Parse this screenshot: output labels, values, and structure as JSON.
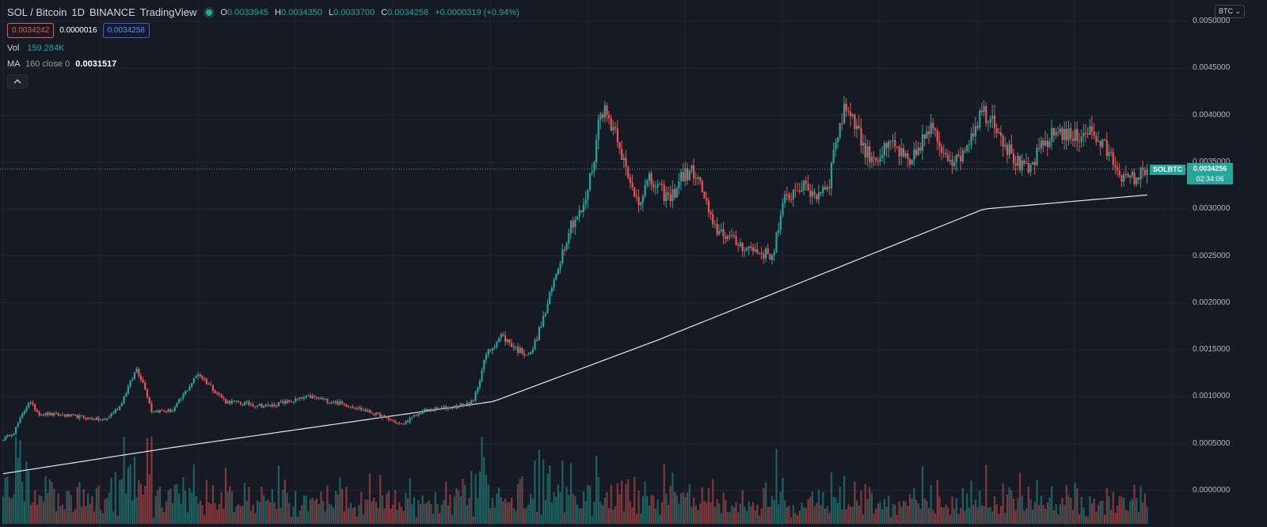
{
  "header": {
    "pair": "SOL / Bitcoin",
    "interval": "1D",
    "exchange": "BINANCE",
    "source": "TradingView",
    "ohlc": {
      "o_label": "O",
      "o": "0.0033945",
      "h_label": "H",
      "h": "0.0034350",
      "l_label": "L",
      "l": "0.0033700",
      "c_label": "C",
      "c": "0.0034256",
      "change": "+0.0000319 (+0.94%)"
    }
  },
  "bidask": {
    "bid": "0.0034242",
    "spread": "0.0000016",
    "ask": "0.0034258"
  },
  "volume": {
    "label": "Vol",
    "value": "159.284K"
  },
  "ma": {
    "label": "MA",
    "params": "160 close 0",
    "value": "0.0031517"
  },
  "currency_button": "BTC",
  "price_axis_labels": [
    "0.0050000",
    "0.0045000",
    "0.0040000",
    "0.0035000",
    "0.0030000",
    "0.0025000",
    "0.0020000",
    "0.0015000",
    "0.0010000",
    "0.0005000",
    "0.0000000"
  ],
  "last_price": {
    "symbol": "SOLBTC",
    "price": "0.0034256",
    "countdown": "02:34:06"
  },
  "colors": {
    "up": "#26a69a",
    "down": "#ef5350",
    "background": "#161a25",
    "grid": "#232632",
    "ma_line": "#e6e6e6"
  },
  "chart_data": {
    "type": "candlestick",
    "ylim": [
      0,
      0.005
    ],
    "anchors": [
      [
        0,
        0.00055
      ],
      [
        5,
        0.00062
      ],
      [
        12,
        0.00095
      ],
      [
        17,
        0.00082
      ],
      [
        30,
        0.0008
      ],
      [
        48,
        0.00075
      ],
      [
        55,
        0.0009
      ],
      [
        63,
        0.0013
      ],
      [
        67,
        0.0011
      ],
      [
        70,
        0.00085
      ],
      [
        80,
        0.00085
      ],
      [
        92,
        0.00125
      ],
      [
        105,
        0.00095
      ],
      [
        125,
        0.0009
      ],
      [
        145,
        0.001
      ],
      [
        165,
        0.0009
      ],
      [
        180,
        0.00078
      ],
      [
        188,
        0.0007
      ],
      [
        198,
        0.00085
      ],
      [
        215,
        0.0009
      ],
      [
        222,
        0.00095
      ],
      [
        228,
        0.00145
      ],
      [
        235,
        0.00165
      ],
      [
        243,
        0.0015
      ],
      [
        249,
        0.00145
      ],
      [
        256,
        0.0019
      ],
      [
        262,
        0.0024
      ],
      [
        268,
        0.00285
      ],
      [
        274,
        0.003
      ],
      [
        279,
        0.00355
      ],
      [
        282,
        0.0041
      ],
      [
        285,
        0.004
      ],
      [
        290,
        0.0038
      ],
      [
        295,
        0.0033
      ],
      [
        300,
        0.0031
      ],
      [
        305,
        0.0033
      ],
      [
        310,
        0.0032
      ],
      [
        315,
        0.0031
      ],
      [
        320,
        0.00335
      ],
      [
        326,
        0.0034
      ],
      [
        330,
        0.0032
      ],
      [
        335,
        0.0028
      ],
      [
        340,
        0.00275
      ],
      [
        345,
        0.00265
      ],
      [
        350,
        0.0026
      ],
      [
        356,
        0.00255
      ],
      [
        363,
        0.0025
      ],
      [
        369,
        0.0031
      ],
      [
        376,
        0.00325
      ],
      [
        384,
        0.00315
      ],
      [
        390,
        0.0033
      ],
      [
        393,
        0.00375
      ],
      [
        398,
        0.0041
      ],
      [
        402,
        0.00395
      ],
      [
        407,
        0.0036
      ],
      [
        413,
        0.00355
      ],
      [
        420,
        0.0037
      ],
      [
        428,
        0.00345
      ],
      [
        433,
        0.0037
      ],
      [
        438,
        0.00385
      ],
      [
        443,
        0.00365
      ],
      [
        450,
        0.0035
      ],
      [
        456,
        0.00375
      ],
      [
        462,
        0.00405
      ],
      [
        468,
        0.00395
      ],
      [
        474,
        0.00365
      ],
      [
        480,
        0.00345
      ],
      [
        484,
        0.0034
      ],
      [
        490,
        0.00365
      ],
      [
        498,
        0.00385
      ],
      [
        505,
        0.00375
      ],
      [
        512,
        0.00385
      ],
      [
        520,
        0.00365
      ],
      [
        526,
        0.00345
      ],
      [
        530,
        0.0033
      ],
      [
        536,
        0.00335
      ],
      [
        540,
        0.00343
      ]
    ],
    "ma_values": [
      0.00018,
      0.00045,
      0.0007,
      0.00095,
      0.0016,
      0.0023,
      0.003,
      0.00315
    ],
    "ma_label": "MA 160 close 0"
  }
}
